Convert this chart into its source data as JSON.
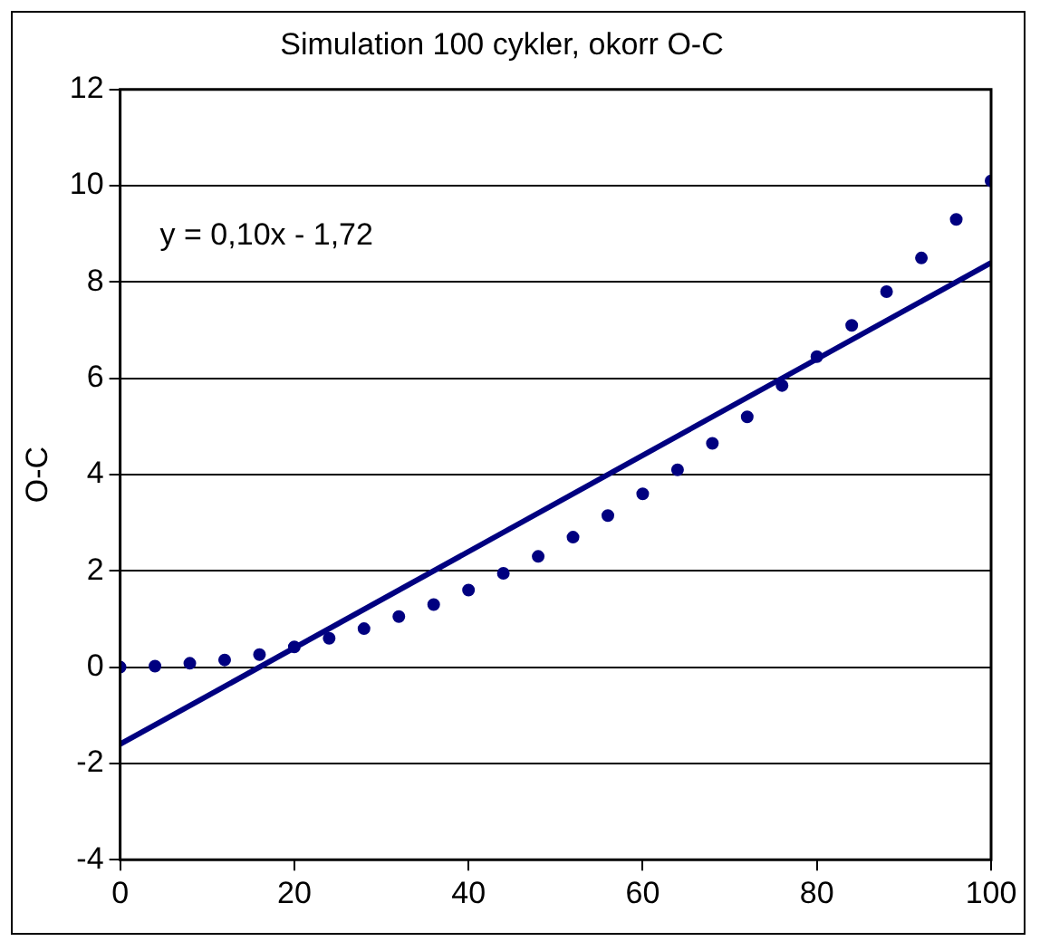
{
  "chart_data": {
    "type": "scatter",
    "title": "Simulation 100 cykler, okorr O-C",
    "ylabel": "O-C",
    "xlim": [
      0,
      100
    ],
    "xticks": [
      0,
      20,
      40,
      60,
      80,
      100
    ],
    "ylim": [
      -4,
      12
    ],
    "yticks": [
      -4,
      -2,
      0,
      2,
      4,
      6,
      8,
      10,
      12
    ],
    "grid": "y",
    "legend": false,
    "marker": "circle",
    "annotations": [
      "y = 0,10x - 1,72"
    ],
    "series": [
      {
        "type": "scatter",
        "color": "#000080",
        "x": [
          0,
          4,
          8,
          12,
          16,
          20,
          24,
          28,
          32,
          36,
          40,
          44,
          48,
          52,
          56,
          60,
          64,
          68,
          72,
          76,
          80,
          84,
          88,
          92,
          96,
          100
        ],
        "values": [
          0,
          0.02,
          0.08,
          0.15,
          0.26,
          0.42,
          0.6,
          0.8,
          1.05,
          1.3,
          1.6,
          1.95,
          2.3,
          2.7,
          3.15,
          3.6,
          4.1,
          4.65,
          5.2,
          5.85,
          6.45,
          7.1,
          7.8,
          8.5,
          9.3,
          10.1
        ]
      },
      {
        "type": "line",
        "color": "#000080",
        "marker": "none",
        "x": [
          0,
          100
        ],
        "values": [
          -1.6,
          8.4
        ]
      }
    ]
  }
}
